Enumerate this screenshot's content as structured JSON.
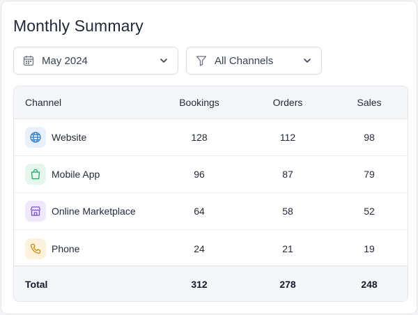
{
  "title": "Monthly Summary",
  "filters": {
    "date": {
      "value": "May 2024",
      "icon": "calendar-icon"
    },
    "channel": {
      "value": "All Channels",
      "icon": "filter-icon"
    }
  },
  "table": {
    "headers": [
      "Channel",
      "Bookings",
      "Orders",
      "Sales"
    ],
    "rows": [
      {
        "channel": "Website",
        "icon": "globe-icon",
        "color": "#2f80c8",
        "bg": "#e7f0fb",
        "bookings": "128",
        "orders": "112",
        "sales": "98"
      },
      {
        "channel": "Mobile App",
        "icon": "shopping-bag-icon",
        "color": "#22a366",
        "bg": "#e5f6ec",
        "bookings": "96",
        "orders": "87",
        "sales": "79"
      },
      {
        "channel": "Online Marketplace",
        "icon": "storefront-icon",
        "color": "#7c4fc9",
        "bg": "#efe8fb",
        "bookings": "64",
        "orders": "58",
        "sales": "52"
      },
      {
        "channel": "Phone",
        "icon": "phone-icon",
        "color": "#c98a12",
        "bg": "#fdf3dc",
        "bookings": "24",
        "orders": "21",
        "sales": "19"
      }
    ],
    "total": {
      "label": "Total",
      "bookings": "312",
      "orders": "278",
      "sales": "248"
    }
  }
}
